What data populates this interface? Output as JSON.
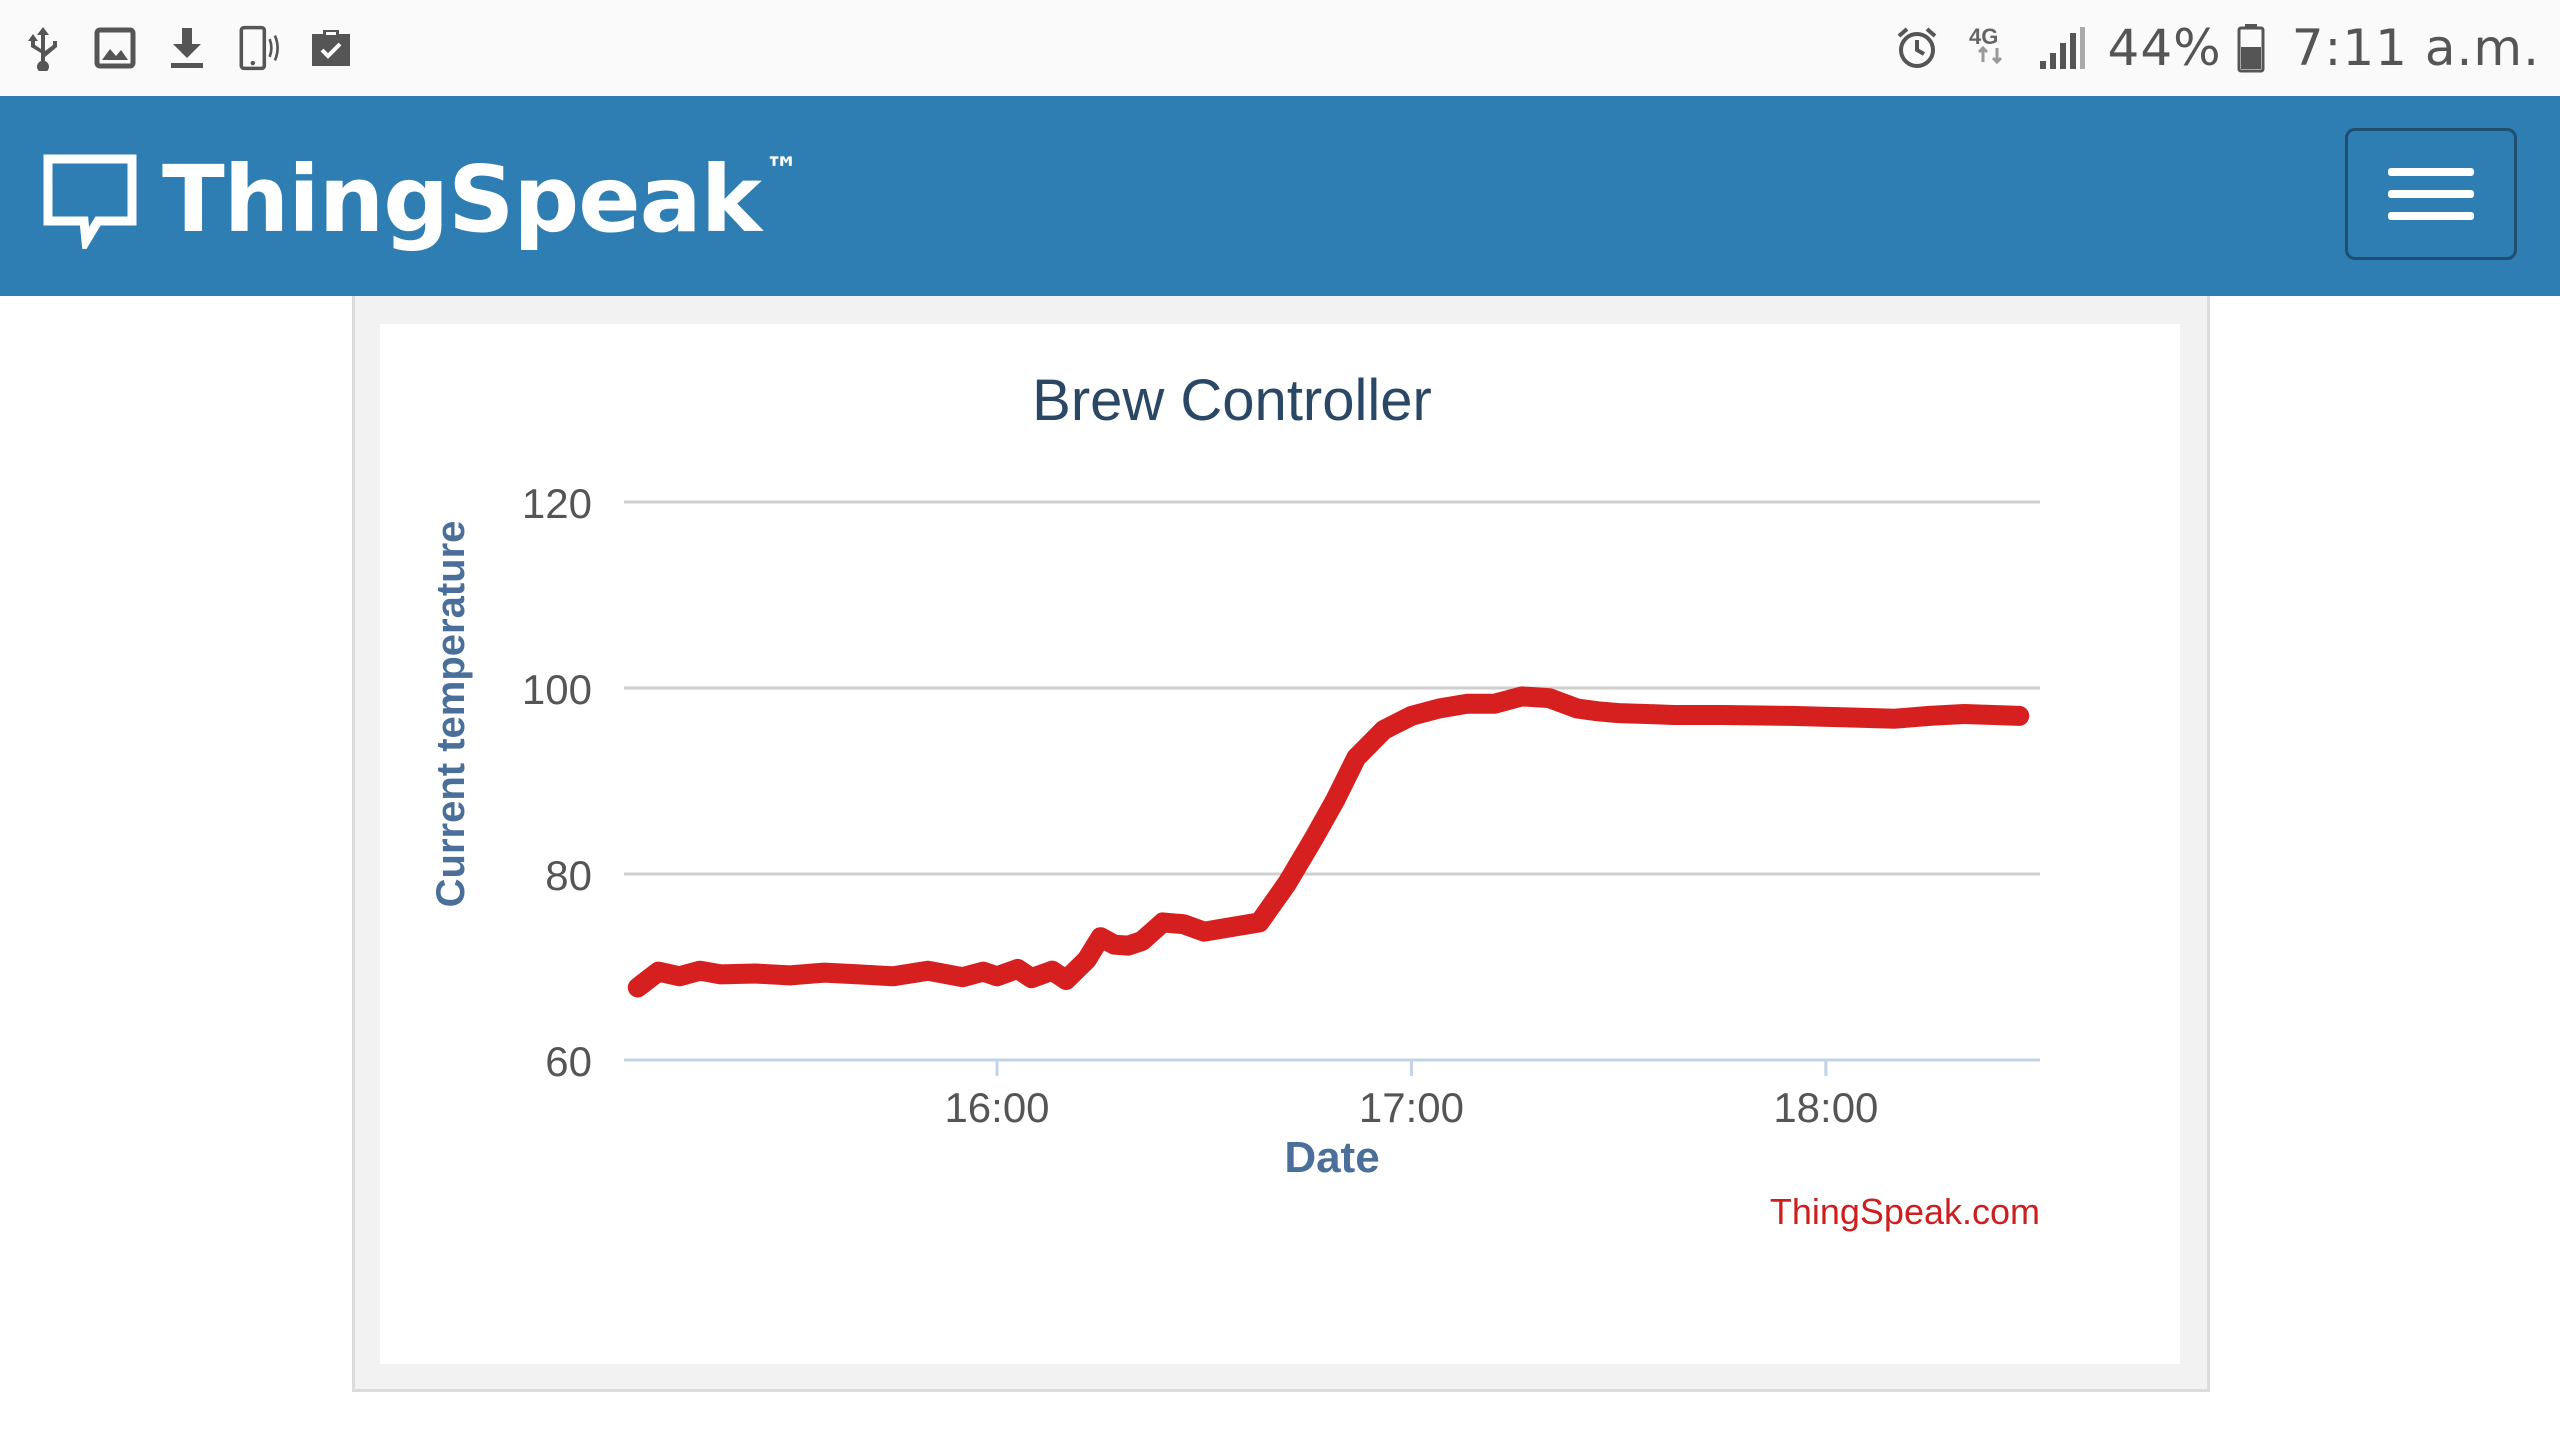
{
  "status_bar": {
    "left_icons": [
      "usb-icon",
      "image-icon",
      "download-icon",
      "phone-vibrate-icon",
      "briefcase-check-icon"
    ],
    "network": "4G",
    "battery_percent": "44%",
    "time": "7:11 a.m."
  },
  "navbar": {
    "brand_name": "ThingSpeak",
    "brand_tm": "™",
    "menu_icon": "hamburger-menu-icon"
  },
  "chart_data": {
    "type": "line",
    "title": "Brew Controller",
    "xlabel": "Date",
    "ylabel": "Current temperature",
    "credit": "ThingSpeak.com",
    "ylim": [
      60,
      120
    ],
    "yticks": [
      "60",
      "80",
      "100",
      "120"
    ],
    "xticks": [
      {
        "label": "16:00",
        "value": "16:00"
      },
      {
        "label": "17:00",
        "value": "17:00"
      },
      {
        "label": "18:00",
        "value": "18:00"
      }
    ],
    "xlim": [
      "15:06",
      "18:31"
    ],
    "grid": true,
    "line_color": "#d62020",
    "series": [
      {
        "x": [
          "15:08",
          "15:11",
          "15:14",
          "15:17",
          "15:20",
          "15:25",
          "15:30",
          "15:35",
          "15:40",
          "15:45",
          "15:50",
          "15:55",
          "15:58",
          "16:00",
          "16:03",
          "16:05",
          "16:08",
          "16:10",
          "16:13",
          "16:15",
          "16:17",
          "16:19",
          "16:21",
          "16:24",
          "16:27",
          "16:30",
          "16:34",
          "16:38",
          "16:42",
          "16:46",
          "16:49",
          "16:52",
          "16:56",
          "17:00",
          "17:04",
          "17:08",
          "17:12",
          "17:16",
          "17:20",
          "17:24",
          "17:27",
          "17:30",
          "17:34",
          "17:38",
          "17:45",
          "17:55",
          "18:05",
          "18:10",
          "18:15",
          "18:20",
          "18:28"
        ],
        "y": [
          67.8,
          69.5,
          69.0,
          69.6,
          69.2,
          69.3,
          69.1,
          69.4,
          69.2,
          69.0,
          69.6,
          68.9,
          69.5,
          69.0,
          69.8,
          68.8,
          69.6,
          68.6,
          70.8,
          73.2,
          72.4,
          72.3,
          72.8,
          74.8,
          74.6,
          73.8,
          74.3,
          74.8,
          79.0,
          84.0,
          88.0,
          92.5,
          95.5,
          97.0,
          97.8,
          98.3,
          98.3,
          99.1,
          98.9,
          97.8,
          97.5,
          97.3,
          97.2,
          97.1,
          97.1,
          97.0,
          96.8,
          96.7,
          97.0,
          97.2,
          97.0
        ]
      }
    ]
  }
}
